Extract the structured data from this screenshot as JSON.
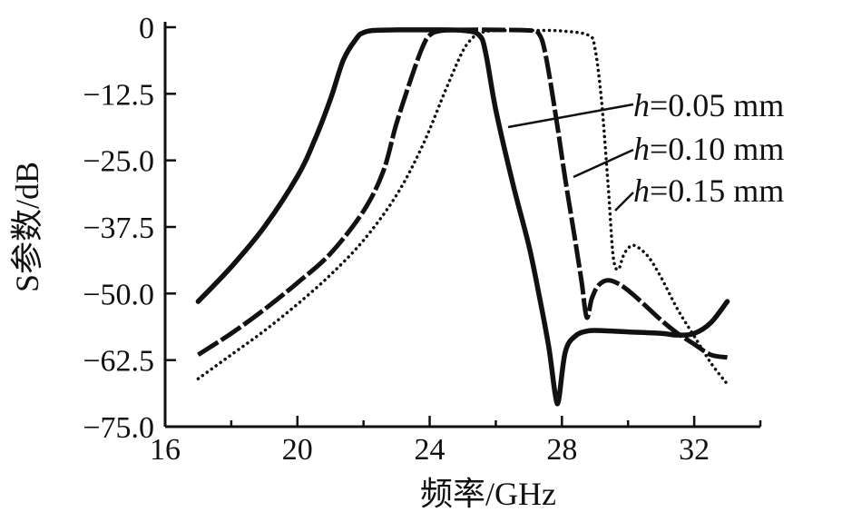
{
  "chart_data": {
    "type": "line",
    "title": "",
    "xlabel": "频率/GHz",
    "ylabel": "S参数/dB",
    "xlim": [
      16,
      34
    ],
    "ylim": [
      -75,
      0
    ],
    "xticks": [
      "16",
      "20",
      "24",
      "28",
      "32"
    ],
    "yticks": [
      "0",
      "−12.5",
      "−25.0",
      "−37.5",
      "−50.0",
      "−62.5",
      "−75.0"
    ],
    "grid": false,
    "legend_position": "right, callout annotations",
    "line_color": "#111111",
    "series": [
      {
        "label_prefix": "h",
        "label_value": "=0.05 mm",
        "style": "solid",
        "x": [
          17.0,
          18.0,
          19.0,
          20.0,
          20.5,
          21.0,
          21.4,
          21.8,
          22.0,
          22.3,
          23.0,
          24.0,
          25.0,
          25.5,
          25.7,
          26.0,
          26.5,
          27.0,
          27.3,
          27.6,
          27.8,
          27.9,
          28.1,
          28.4,
          28.8,
          29.3,
          30.0,
          31.0,
          31.5,
          32.0,
          32.5,
          33.0
        ],
        "y": [
          -51.5,
          -45.0,
          -37.5,
          -28.0,
          -21.5,
          -13.5,
          -6.0,
          -2.0,
          -1.0,
          -0.6,
          -0.5,
          -0.5,
          -0.6,
          -1.5,
          -5.0,
          -15.5,
          -29.0,
          -41.0,
          -50.0,
          -60.0,
          -69.0,
          -70.0,
          -61.0,
          -58.0,
          -57.0,
          -57.0,
          -57.2,
          -57.5,
          -57.8,
          -57.5,
          -55.5,
          -51.5
        ]
      },
      {
        "label_prefix": "h",
        "label_value": "=0.10 mm",
        "style": "dashed",
        "x": [
          17.0,
          18.0,
          19.0,
          20.0,
          21.0,
          22.0,
          22.6,
          23.0,
          23.5,
          23.8,
          24.0,
          24.3,
          25.0,
          26.0,
          27.0,
          27.3,
          27.5,
          27.8,
          28.1,
          28.4,
          28.6,
          28.75,
          28.9,
          29.1,
          29.4,
          29.8,
          30.3,
          31.0,
          31.5,
          32.0,
          32.5,
          33.0
        ],
        "y": [
          -61.5,
          -57.5,
          -53.0,
          -48.0,
          -42.5,
          -34.5,
          -27.0,
          -18.0,
          -8.5,
          -3.5,
          -1.5,
          -0.7,
          -0.5,
          -0.5,
          -0.6,
          -1.2,
          -5.0,
          -16.0,
          -28.5,
          -40.0,
          -48.0,
          -54.5,
          -51.0,
          -48.5,
          -47.5,
          -48.5,
          -51.0,
          -55.0,
          -57.5,
          -59.5,
          -61.5,
          -62.0
        ]
      },
      {
        "label_prefix": "h",
        "label_value": "=0.15 mm",
        "style": "dotted",
        "x": [
          17.0,
          18.0,
          19.0,
          20.0,
          21.0,
          22.0,
          23.0,
          23.8,
          24.5,
          25.0,
          25.3,
          25.5,
          25.8,
          26.5,
          27.0,
          28.0,
          28.8,
          29.0,
          29.2,
          29.4,
          29.55,
          29.7,
          29.85,
          30.0,
          30.2,
          30.6,
          31.0,
          31.5,
          32.0,
          32.5,
          33.0
        ],
        "y": [
          -66.0,
          -61.5,
          -57.0,
          -52.0,
          -46.5,
          -40.0,
          -31.5,
          -22.0,
          -11.5,
          -4.5,
          -2.0,
          -1.2,
          -0.7,
          -0.6,
          -0.6,
          -0.7,
          -1.5,
          -4.0,
          -14.0,
          -30.0,
          -43.0,
          -45.5,
          -43.0,
          -41.5,
          -41.0,
          -43.0,
          -47.0,
          -53.0,
          -58.0,
          -63.0,
          -67.0
        ]
      }
    ]
  }
}
